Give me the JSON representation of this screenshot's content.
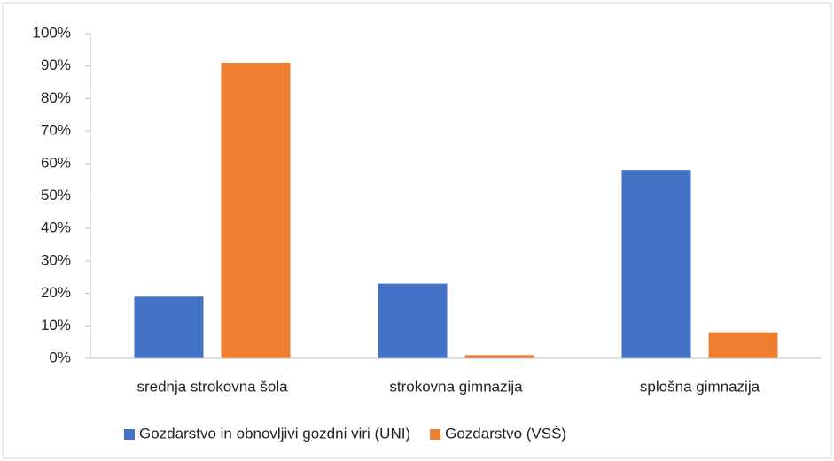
{
  "chart_data": {
    "type": "bar",
    "categories": [
      "srednja strokovna šola",
      "strokovna gimnazija",
      "splošna gimnazija"
    ],
    "series": [
      {
        "name": "Gozdarstvo in obnovljivi gozdni viri (UNI)",
        "color": "#4472c4",
        "values": [
          19,
          23,
          58
        ]
      },
      {
        "name": "Gozdarstvo (VSŠ)",
        "color": "#ed7d31",
        "values": [
          91,
          1,
          8
        ]
      }
    ],
    "ylim": [
      0,
      100
    ],
    "yticks": [
      {
        "value": 0,
        "label": "0%"
      },
      {
        "value": 10,
        "label": "10%"
      },
      {
        "value": 20,
        "label": "20%"
      },
      {
        "value": 30,
        "label": "30%"
      },
      {
        "value": 40,
        "label": "40%"
      },
      {
        "value": 50,
        "label": "50%"
      },
      {
        "value": 60,
        "label": "60%"
      },
      {
        "value": 70,
        "label": "70%"
      },
      {
        "value": 80,
        "label": "80%"
      },
      {
        "value": 90,
        "label": "90%"
      },
      {
        "value": 100,
        "label": "100%"
      }
    ],
    "grid": false,
    "legend": "bottom"
  }
}
